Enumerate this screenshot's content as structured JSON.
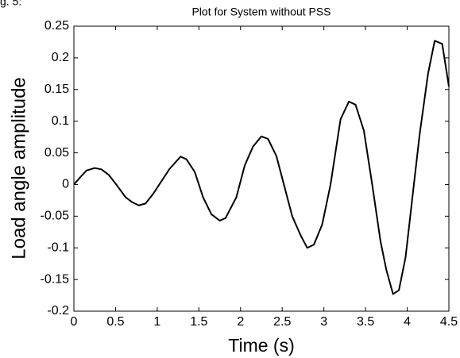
{
  "caption": "g. 5:",
  "chart_data": {
    "type": "line",
    "title": "Plot for System without PSS",
    "x_label": "Time (s)",
    "y_label": "Load angle amplitude",
    "x": [
      0,
      0.08,
      0.15,
      0.25,
      0.33,
      0.42,
      0.52,
      0.62,
      0.7,
      0.78,
      0.86,
      0.95,
      1.05,
      1.15,
      1.28,
      1.35,
      1.45,
      1.55,
      1.65,
      1.75,
      1.82,
      1.95,
      2.05,
      2.15,
      2.25,
      2.33,
      2.43,
      2.52,
      2.62,
      2.72,
      2.8,
      2.88,
      2.98,
      3.08,
      3.2,
      3.3,
      3.38,
      3.48,
      3.58,
      3.68,
      3.75,
      3.83,
      3.9,
      3.98,
      4.08,
      4.15,
      4.25,
      4.33,
      4.42,
      4.5
    ],
    "series": [
      {
        "color": "#000000",
        "values": [
          0,
          0.012,
          0.022,
          0.026,
          0.024,
          0.015,
          -0.002,
          -0.02,
          -0.028,
          -0.033,
          -0.03,
          -0.015,
          0.005,
          0.025,
          0.044,
          0.04,
          0.02,
          -0.02,
          -0.047,
          -0.057,
          -0.053,
          -0.02,
          0.03,
          0.06,
          0.076,
          0.072,
          0.045,
          0,
          -0.05,
          -0.08,
          -0.1,
          -0.095,
          -0.063,
          0,
          0.103,
          0.131,
          0.126,
          0.085,
          0,
          -0.09,
          -0.135,
          -0.173,
          -0.167,
          -0.115,
          0,
          0.08,
          0.175,
          0.227,
          0.222,
          0.155
        ]
      }
    ],
    "xlim": [
      0,
      4.5
    ],
    "ylim": [
      -0.2,
      0.25
    ],
    "xticks": [
      0,
      0.5,
      1,
      1.5,
      2,
      2.5,
      3,
      3.5,
      4,
      4.5
    ],
    "yticks": [
      -0.2,
      -0.15,
      -0.1,
      -0.05,
      0,
      0.05,
      0.1,
      0.15,
      0.2,
      0.25
    ],
    "grid": false
  }
}
